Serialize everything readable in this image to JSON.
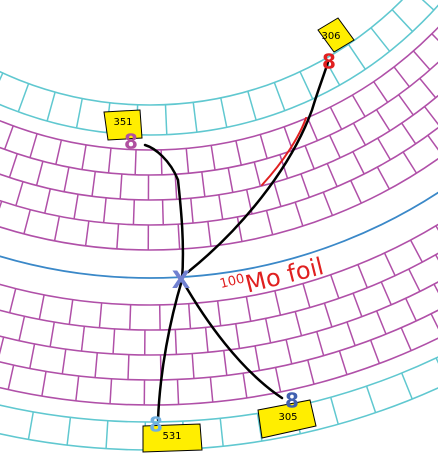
{
  "calorimeters": [
    {
      "label": "306"
    },
    {
      "label": "351"
    },
    {
      "label": "531"
    },
    {
      "label": "305"
    }
  ],
  "markers": [
    "8",
    "8",
    "8",
    "8"
  ],
  "vertex": "X",
  "foil": {
    "superscript": "100",
    "label": "Mo foil"
  }
}
